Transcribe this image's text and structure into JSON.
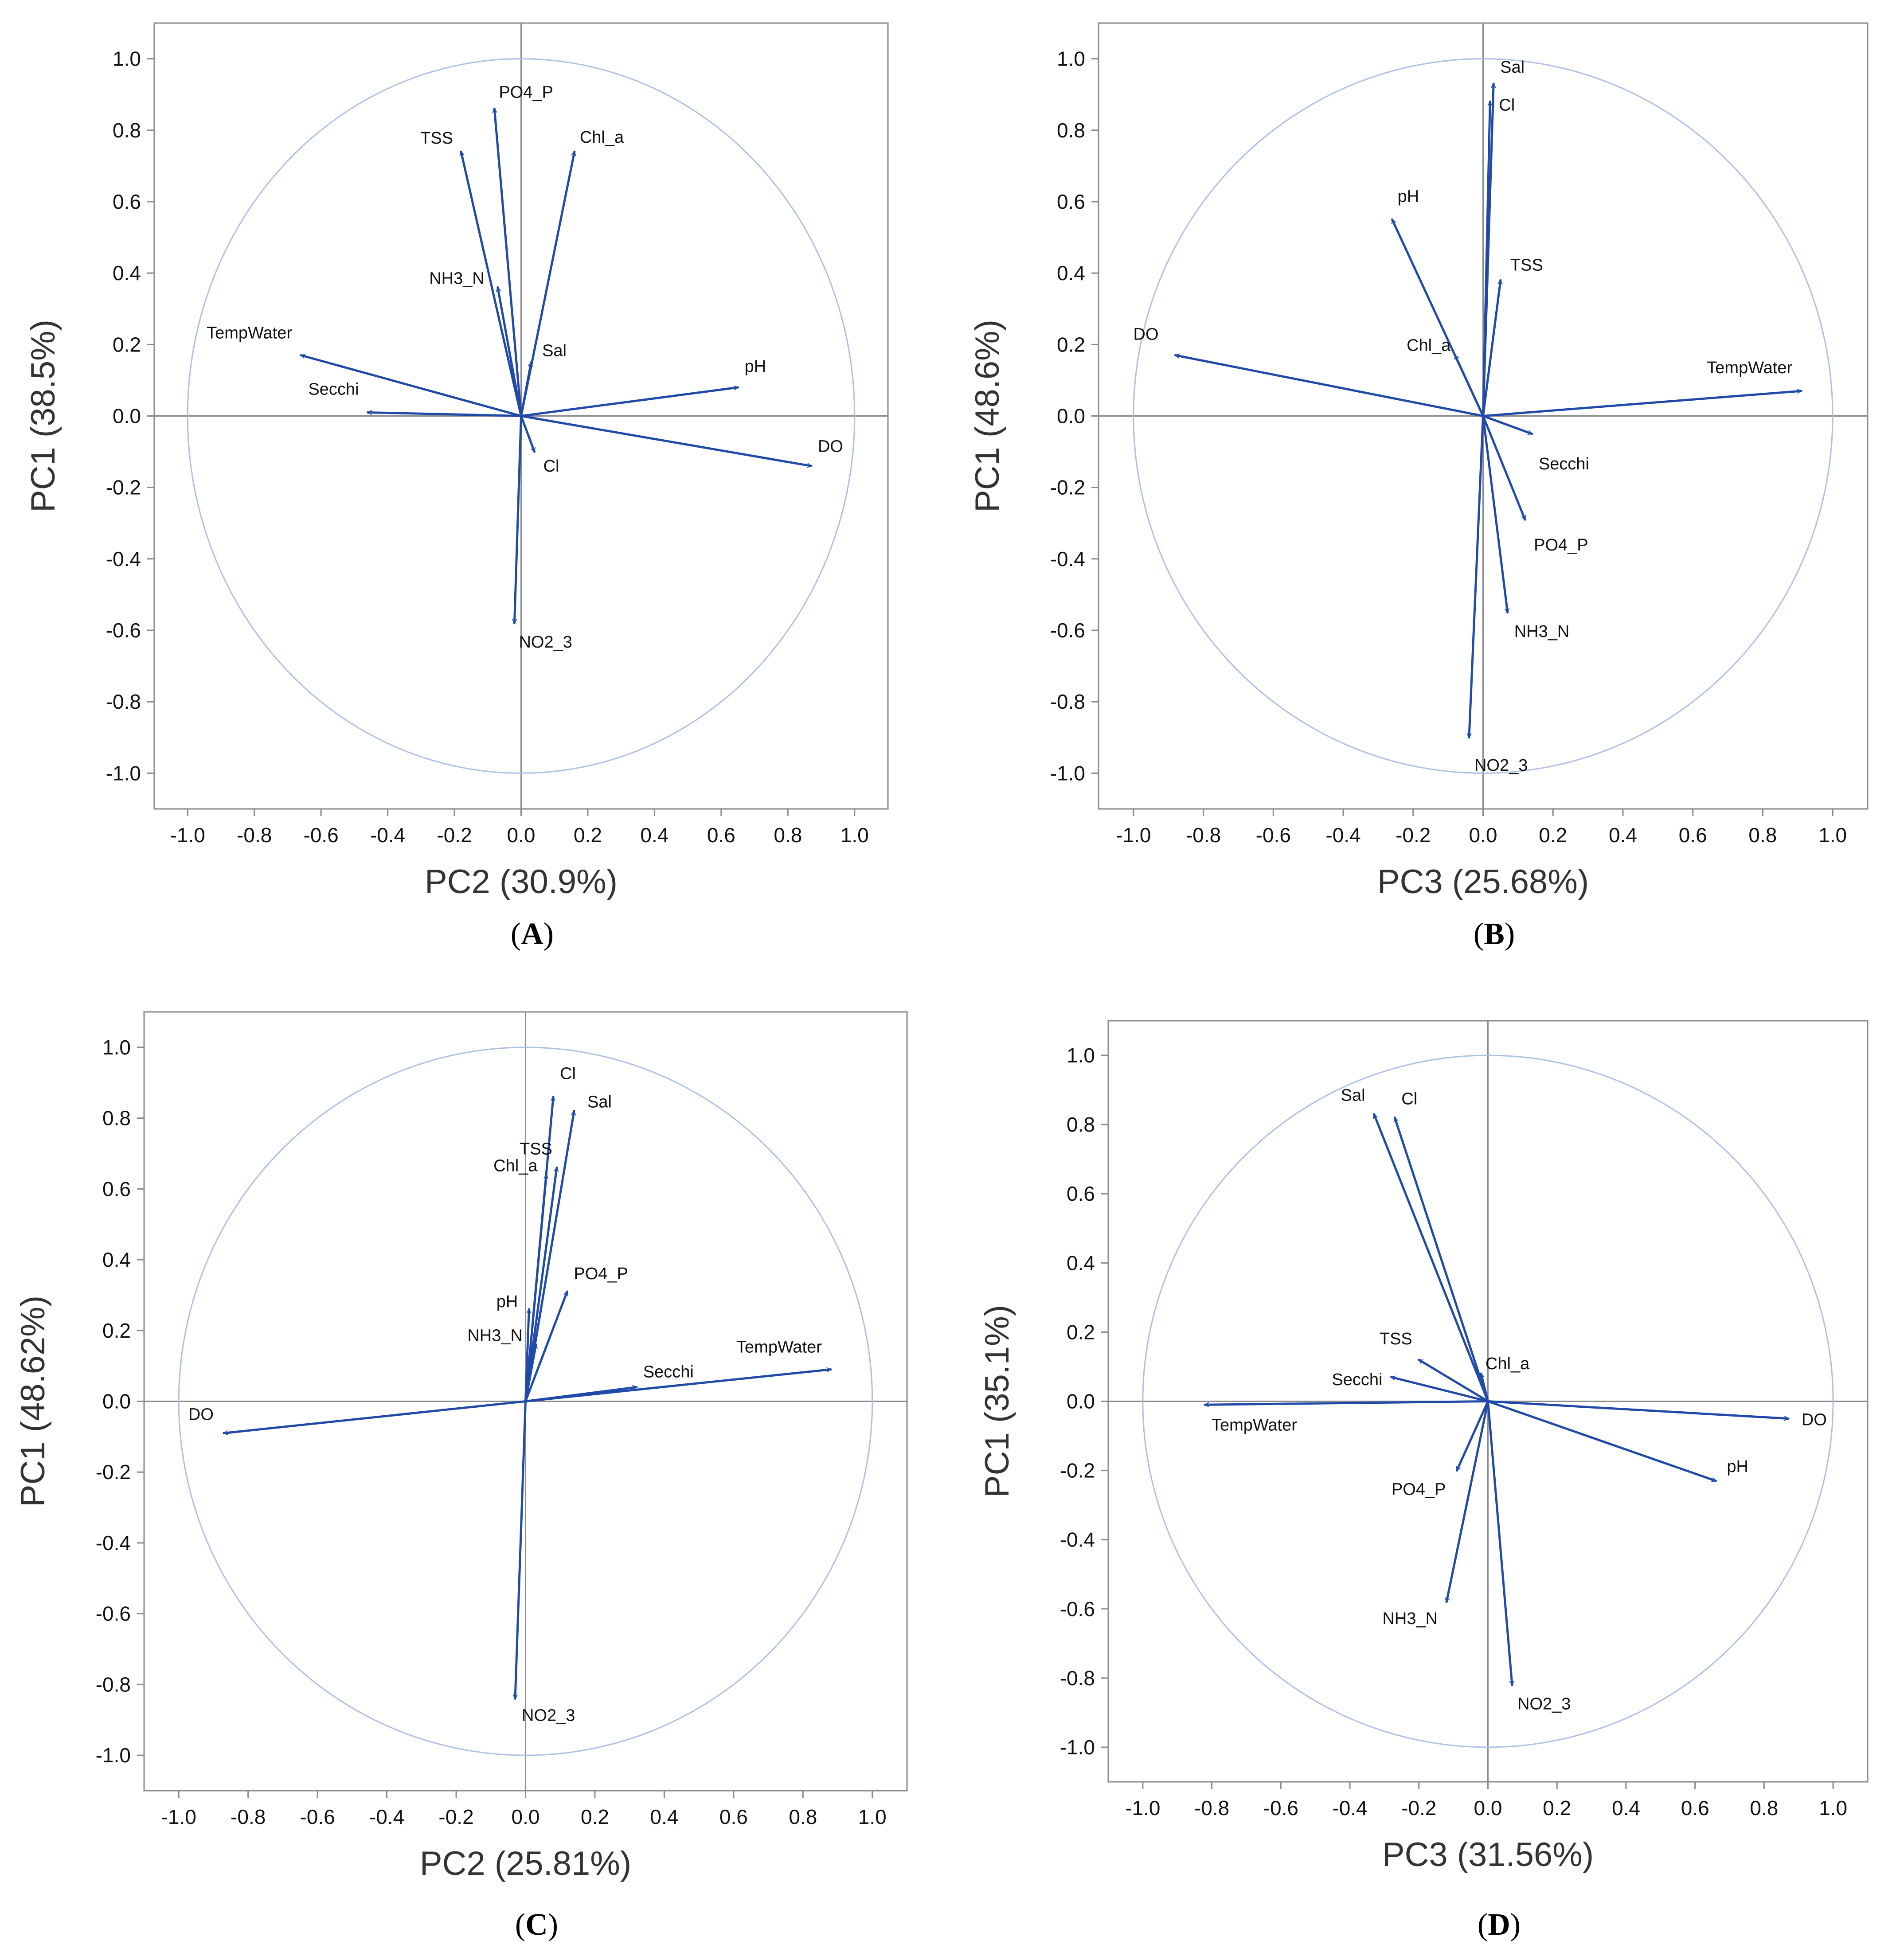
{
  "chart_data": [
    {
      "type": "scatter",
      "panel_label": "A",
      "xlabel": "PC2 (30.9%)",
      "ylabel": "PC1 (38.5%)",
      "xlim": [
        -1.1,
        1.1
      ],
      "ylim": [
        -1.1,
        1.1
      ],
      "ticks": [
        -1.0,
        -0.8,
        -0.6,
        -0.4,
        -0.2,
        0.0,
        0.2,
        0.4,
        0.6,
        0.8,
        1.0
      ],
      "tick_labels": [
        "-1.0",
        "-0.8",
        "-0.6",
        "-0.4",
        "-0.2",
        "0.0",
        "0.2",
        "0.4",
        "0.6",
        "0.8",
        "1.0"
      ],
      "unit_circle": true,
      "loadings": [
        {
          "name": "PO4_P",
          "x": -0.08,
          "y": 0.86
        },
        {
          "name": "TSS",
          "x": -0.18,
          "y": 0.74
        },
        {
          "name": "Chl_a",
          "x": 0.16,
          "y": 0.74
        },
        {
          "name": "NH3_N",
          "x": -0.07,
          "y": 0.36
        },
        {
          "name": "TempWater",
          "x": -0.66,
          "y": 0.17
        },
        {
          "name": "Secchi",
          "x": -0.46,
          "y": 0.01
        },
        {
          "name": "Sal",
          "x": 0.03,
          "y": 0.15
        },
        {
          "name": "pH",
          "x": 0.65,
          "y": 0.08
        },
        {
          "name": "DO",
          "x": 0.87,
          "y": -0.14
        },
        {
          "name": "Cl",
          "x": 0.04,
          "y": -0.1
        },
        {
          "name": "NO2_3",
          "x": -0.02,
          "y": -0.58
        }
      ]
    },
    {
      "type": "scatter",
      "panel_label": "B",
      "xlabel": "PC3 (25.68%)",
      "ylabel": "PC1 (48.6%)",
      "xlim": [
        -1.1,
        1.1
      ],
      "ylim": [
        -1.1,
        1.1
      ],
      "ticks": [
        -1.0,
        -0.8,
        -0.6,
        -0.4,
        -0.2,
        0.0,
        0.2,
        0.4,
        0.6,
        0.8,
        1.0
      ],
      "tick_labels": [
        "-1.0",
        "-0.8",
        "-0.6",
        "-0.4",
        "-0.2",
        "0.0",
        "0.2",
        "0.4",
        "0.6",
        "0.8",
        "1.0"
      ],
      "unit_circle": true,
      "loadings": [
        {
          "name": "Sal",
          "x": 0.03,
          "y": 0.93
        },
        {
          "name": "Cl",
          "x": 0.02,
          "y": 0.88
        },
        {
          "name": "pH",
          "x": -0.26,
          "y": 0.55
        },
        {
          "name": "TSS",
          "x": 0.05,
          "y": 0.38
        },
        {
          "name": "Chl_a",
          "x": -0.08,
          "y": 0.17
        },
        {
          "name": "DO",
          "x": -0.88,
          "y": 0.17
        },
        {
          "name": "TempWater",
          "x": 0.91,
          "y": 0.07
        },
        {
          "name": "Secchi",
          "x": 0.14,
          "y": -0.05
        },
        {
          "name": "PO4_P",
          "x": 0.12,
          "y": -0.29
        },
        {
          "name": "NH3_N",
          "x": 0.07,
          "y": -0.55
        },
        {
          "name": "NO2_3",
          "x": -0.04,
          "y": -0.9
        }
      ]
    },
    {
      "type": "scatter",
      "panel_label": "C",
      "xlabel": "PC2 (25.81%)",
      "ylabel": "PC1 (48.62%)",
      "xlim": [
        -1.1,
        1.1
      ],
      "ylim": [
        -1.1,
        1.1
      ],
      "ticks": [
        -1.0,
        -0.8,
        -0.6,
        -0.4,
        -0.2,
        0.0,
        0.2,
        0.4,
        0.6,
        0.8,
        1.0
      ],
      "tick_labels": [
        "-1.0",
        "-0.8",
        "-0.6",
        "-0.4",
        "-0.2",
        "0.0",
        "0.2",
        "0.4",
        "0.6",
        "0.8",
        "1.0"
      ],
      "unit_circle": true,
      "loadings": [
        {
          "name": "Cl",
          "x": 0.08,
          "y": 0.86
        },
        {
          "name": "Sal",
          "x": 0.14,
          "y": 0.82
        },
        {
          "name": "TSS",
          "x": 0.09,
          "y": 0.66
        },
        {
          "name": "Chl_a",
          "x": 0.06,
          "y": 0.64
        },
        {
          "name": "PO4_P",
          "x": 0.12,
          "y": 0.31
        },
        {
          "name": "pH",
          "x": 0.01,
          "y": 0.26
        },
        {
          "name": "NH3_N",
          "x": 0.03,
          "y": 0.16
        },
        {
          "name": "TempWater",
          "x": 0.88,
          "y": 0.09
        },
        {
          "name": "Secchi",
          "x": 0.32,
          "y": 0.04
        },
        {
          "name": "DO",
          "x": -0.87,
          "y": -0.09
        },
        {
          "name": "NO2_3",
          "x": -0.03,
          "y": -0.84
        }
      ]
    },
    {
      "type": "scatter",
      "panel_label": "D",
      "xlabel": "PC3 (31.56%)",
      "ylabel": "PC1 (35.1%)",
      "xlim": [
        -1.1,
        1.1
      ],
      "ylim": [
        -1.1,
        1.1
      ],
      "ticks": [
        -1.0,
        -0.8,
        -0.6,
        -0.4,
        -0.2,
        0.0,
        0.2,
        0.4,
        0.6,
        0.8,
        1.0
      ],
      "tick_labels": [
        "-1.0",
        "-0.8",
        "-0.6",
        "-0.4",
        "-0.2",
        "0.0",
        "0.2",
        "0.4",
        "0.6",
        "0.8",
        "1.0"
      ],
      "unit_circle": true,
      "loadings": [
        {
          "name": "Sal",
          "x": -0.33,
          "y": 0.83
        },
        {
          "name": "Cl",
          "x": -0.27,
          "y": 0.82
        },
        {
          "name": "TSS",
          "x": -0.2,
          "y": 0.12
        },
        {
          "name": "Chl_a",
          "x": -0.02,
          "y": 0.08
        },
        {
          "name": "Secchi",
          "x": -0.28,
          "y": 0.07
        },
        {
          "name": "TempWater",
          "x": -0.82,
          "y": -0.01
        },
        {
          "name": "DO",
          "x": 0.87,
          "y": -0.05
        },
        {
          "name": "pH",
          "x": 0.66,
          "y": -0.23
        },
        {
          "name": "PO4_P",
          "x": -0.09,
          "y": -0.2
        },
        {
          "name": "NH3_N",
          "x": -0.12,
          "y": -0.58
        },
        {
          "name": "NO2_3",
          "x": 0.07,
          "y": -0.82
        }
      ]
    }
  ]
}
